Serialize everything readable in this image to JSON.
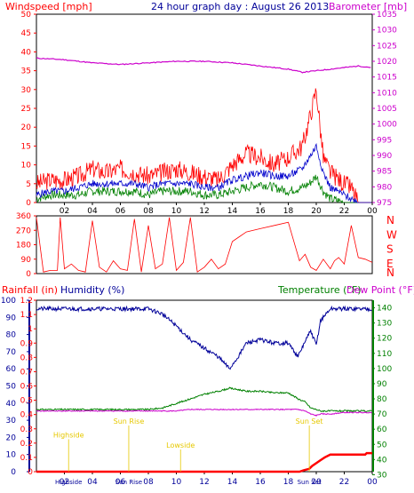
{
  "header": {
    "windspeed_label": "Windspeed [mph]",
    "title": "24 hour graph day : August 26 2013",
    "barometer_label": "Barometer [mb]"
  },
  "colors": {
    "windspeed": "#ff0000",
    "gust_avg": "#0000cc",
    "wind_low": "#008000",
    "barometer": "#cc00cc",
    "direction": "#ff0000",
    "humidity": "#000099",
    "temperature": "#008000",
    "dewpoint": "#cc00cc",
    "rainfall": "#ff0000",
    "astro": "#e6c800",
    "panel_border": "#000000"
  },
  "chart_data": [
    {
      "type": "line",
      "name": "wind-barometer",
      "x_ticks": [
        "02",
        "04",
        "06",
        "08",
        "10",
        "12",
        "14",
        "16",
        "18",
        "20",
        "22",
        "00"
      ],
      "left_axis": {
        "label": "Windspeed [mph]",
        "ticks": [
          0,
          5,
          10,
          15,
          20,
          25,
          30,
          35,
          40,
          45,
          50
        ],
        "ylim": [
          0,
          50
        ]
      },
      "right_axis": {
        "label": "Barometer [mb]",
        "ticks": [
          975,
          980,
          985,
          990,
          995,
          1000,
          1005,
          1010,
          1015,
          1020,
          1025,
          1030,
          1035
        ],
        "ylim": [
          975,
          1035
        ]
      },
      "x_hours": [
        0,
        1,
        2,
        3,
        4,
        5,
        6,
        7,
        8,
        9,
        10,
        11,
        12,
        13,
        14,
        15,
        16,
        17,
        18,
        19,
        19.5,
        20,
        20.5,
        21,
        22,
        22.5,
        23,
        24
      ],
      "series": [
        {
          "key": "barometer",
          "axis": "right",
          "hours": [
            0,
            2,
            4,
            6,
            8,
            10,
            12,
            14,
            16,
            18,
            19,
            20,
            21,
            22,
            23,
            24
          ],
          "values": [
            1021,
            1020.5,
            1019.5,
            1019,
            1019.5,
            1020,
            1020,
            1019.5,
            1018.5,
            1017.5,
            1016.5,
            1017,
            1017.5,
            1018,
            1018.5,
            1018
          ]
        },
        {
          "key": "windspeed",
          "axis": "left",
          "values": [
            5,
            6,
            6,
            7,
            9,
            8,
            9,
            8,
            7,
            8,
            9,
            8,
            7,
            6,
            10,
            13,
            12,
            10,
            12,
            15,
            22,
            30,
            12,
            8,
            5,
            4,
            0,
            0
          ]
        },
        {
          "key": "gust_avg",
          "axis": "left",
          "values": [
            2,
            3,
            3,
            4,
            5,
            5,
            5,
            5,
            4,
            5,
            5,
            5,
            4,
            4,
            6,
            7,
            8,
            7,
            7,
            9,
            12,
            15,
            8,
            4,
            2,
            1,
            0,
            0
          ]
        },
        {
          "key": "wind_low",
          "axis": "left",
          "values": [
            1,
            2,
            2,
            2,
            3,
            3,
            3,
            3,
            2,
            3,
            3,
            3,
            2,
            2,
            3,
            4,
            5,
            4,
            3,
            4,
            5,
            7,
            3,
            1,
            0,
            0,
            0,
            0
          ]
        }
      ]
    },
    {
      "type": "scatter",
      "name": "wind-direction",
      "left_ticks": [
        0,
        90,
        180,
        270,
        360
      ],
      "ylim": [
        0,
        360
      ],
      "compass_labels": [
        "N",
        "W",
        "S",
        "E",
        "N"
      ],
      "hours": [
        0,
        0.5,
        1,
        1.5,
        1.7,
        2,
        2.5,
        3,
        3.5,
        4,
        4.5,
        5,
        5.5,
        6,
        6.5,
        7,
        7.5,
        8,
        8.5,
        9,
        9.5,
        10,
        10.5,
        11,
        11.5,
        12,
        12.5,
        13,
        13.5,
        14,
        14.5,
        15,
        16,
        17,
        18,
        18.8,
        19.2,
        19.6,
        20,
        20.5,
        21,
        21.3,
        21.6,
        22,
        22.5,
        23,
        23.5,
        24
      ],
      "values": [
        350,
        10,
        20,
        20,
        350,
        30,
        60,
        20,
        10,
        330,
        40,
        10,
        80,
        30,
        20,
        340,
        10,
        300,
        30,
        60,
        350,
        20,
        70,
        350,
        10,
        40,
        90,
        30,
        60,
        200,
        230,
        260,
        280,
        300,
        320,
        80,
        120,
        40,
        20,
        90,
        30,
        80,
        100,
        60,
        300,
        100,
        90,
        70
      ]
    },
    {
      "type": "line",
      "name": "humidity-temperature",
      "x_ticks": [
        "02",
        "04",
        "06",
        "08",
        "10",
        "12",
        "14",
        "16",
        "18",
        "20",
        "22",
        "00"
      ],
      "labels": {
        "rainfall": "Rainfall (in)",
        "humidity": "Humidity (%)",
        "temperature": "Temperature (°F)",
        "dewpoint": "Dew Point (°F)"
      },
      "humidity_axis": {
        "ticks": [
          0,
          10,
          20,
          30,
          40,
          50,
          60,
          70,
          80,
          90,
          100
        ],
        "ylim": [
          0,
          100
        ]
      },
      "rain_axis": {
        "ticks": [
          0,
          0.1,
          0.2,
          0.3,
          0.4,
          0.5,
          0.6,
          0.7,
          0.8,
          0.9,
          1,
          1.1,
          1.2
        ],
        "tick_labels": [
          "0",
          "0.1",
          "0.2",
          "0.3",
          "0.4",
          "0.5",
          "0.6",
          "0.7",
          "0.8",
          "0.9",
          "1",
          "1.1",
          "1.2"
        ],
        "ylim": [
          0,
          1.2
        ]
      },
      "temp_axis": {
        "ticks": [
          30,
          40,
          50,
          60,
          70,
          80,
          90,
          100,
          110,
          120,
          130,
          140
        ],
        "ylim": [
          32,
          145
        ]
      },
      "hours": [
        0,
        2,
        4,
        6,
        7,
        8,
        9,
        10,
        11,
        12,
        13,
        13.8,
        14.5,
        15,
        16,
        17,
        18,
        18.7,
        19.2,
        19.6,
        20,
        20.3,
        21,
        22,
        23,
        24
      ],
      "series": [
        {
          "key": "humidity",
          "axis": "humidity",
          "values": [
            95,
            95,
            95,
            95,
            95,
            95,
            92,
            85,
            77,
            72,
            67,
            60,
            68,
            75,
            77,
            75,
            75,
            67,
            76,
            82,
            74,
            88,
            95,
            95,
            95,
            95
          ]
        },
        {
          "key": "temperature",
          "axis": "temp",
          "values": [
            73,
            73,
            73,
            73,
            73,
            73,
            74,
            77,
            80,
            83,
            85,
            87,
            86,
            85,
            85,
            84,
            84,
            80,
            78,
            74,
            73,
            72,
            72,
            72,
            72,
            72
          ]
        },
        {
          "key": "dewpoint",
          "axis": "temp",
          "values": [
            72,
            72,
            72,
            72,
            72,
            72,
            72,
            72,
            73,
            73,
            73,
            73,
            73,
            73,
            73,
            73,
            73,
            73,
            72,
            70,
            69,
            70,
            70,
            71,
            71,
            71
          ]
        },
        {
          "key": "rainfall",
          "axis": "rain",
          "hours": [
            0,
            18.8,
            19.1,
            19.5,
            19.7,
            20,
            20.3,
            20.6,
            21,
            23.5,
            23.6,
            24
          ],
          "values": [
            0,
            0,
            0.01,
            0.02,
            0.04,
            0.06,
            0.08,
            0.1,
            0.12,
            0.12,
            0.13,
            0.13
          ]
        }
      ],
      "annotations": [
        {
          "text": "Highside",
          "hour": 2.3,
          "level": 0.2
        },
        {
          "text": "Sun Rise",
          "hour": 6.6,
          "level": 0.28
        },
        {
          "text": "Lowside",
          "hour": 10.3,
          "level": 0.14
        },
        {
          "text": "Sun Set",
          "hour": 19.5,
          "level": 0.28
        }
      ],
      "bottom_time_labels": [
        "Highside",
        "Sun Rise",
        "Sun Set"
      ]
    }
  ]
}
